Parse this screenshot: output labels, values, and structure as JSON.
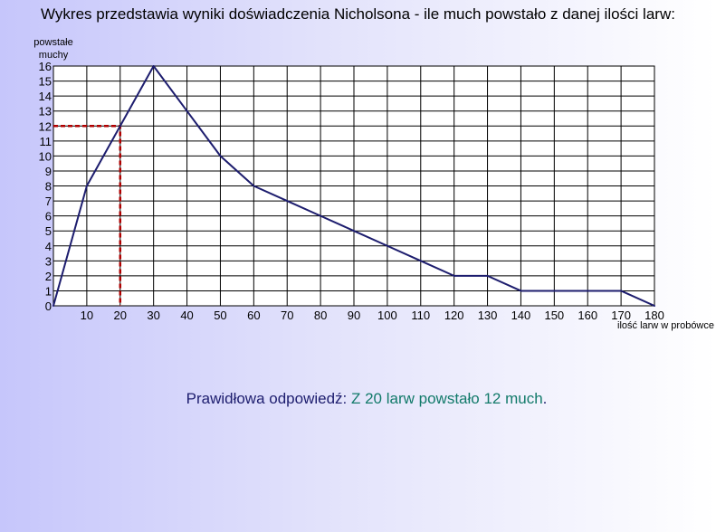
{
  "title": "Wykres przedstawia wyniki doświadczenia Nicholsona - ile much powstało z danej ilości larw:",
  "answer": {
    "lead": "Prawidłowa odpowiedź:",
    "value": "Z 20 larw powstało 12 much",
    "end": "."
  },
  "chart_data": {
    "type": "line",
    "title": "",
    "xlabel": "ilość larw w probówce",
    "ylabel_lines": [
      "powstałe",
      "muchy"
    ],
    "xlim": [
      0,
      180
    ],
    "ylim": [
      0,
      16
    ],
    "x_ticks": [
      10,
      20,
      30,
      40,
      50,
      60,
      70,
      80,
      90,
      100,
      110,
      120,
      130,
      140,
      150,
      160,
      170,
      180
    ],
    "y_ticks": [
      0,
      1,
      2,
      3,
      4,
      5,
      6,
      7,
      8,
      9,
      10,
      11,
      12,
      13,
      14,
      15,
      16
    ],
    "grid": true,
    "line_color": "#1d1d6e",
    "highlight_color": "#b00000",
    "series": [
      {
        "x": [
          0,
          10,
          20,
          30,
          40,
          50,
          60,
          70,
          80,
          90,
          100,
          110,
          120,
          130,
          140,
          150,
          160,
          170,
          180
        ],
        "y": [
          0,
          8,
          12,
          16,
          13,
          10,
          8,
          7,
          6,
          5,
          4,
          3,
          2,
          2,
          1,
          1,
          1,
          1,
          0
        ]
      }
    ],
    "highlight_point": {
      "x": 20,
      "y": 12
    }
  }
}
